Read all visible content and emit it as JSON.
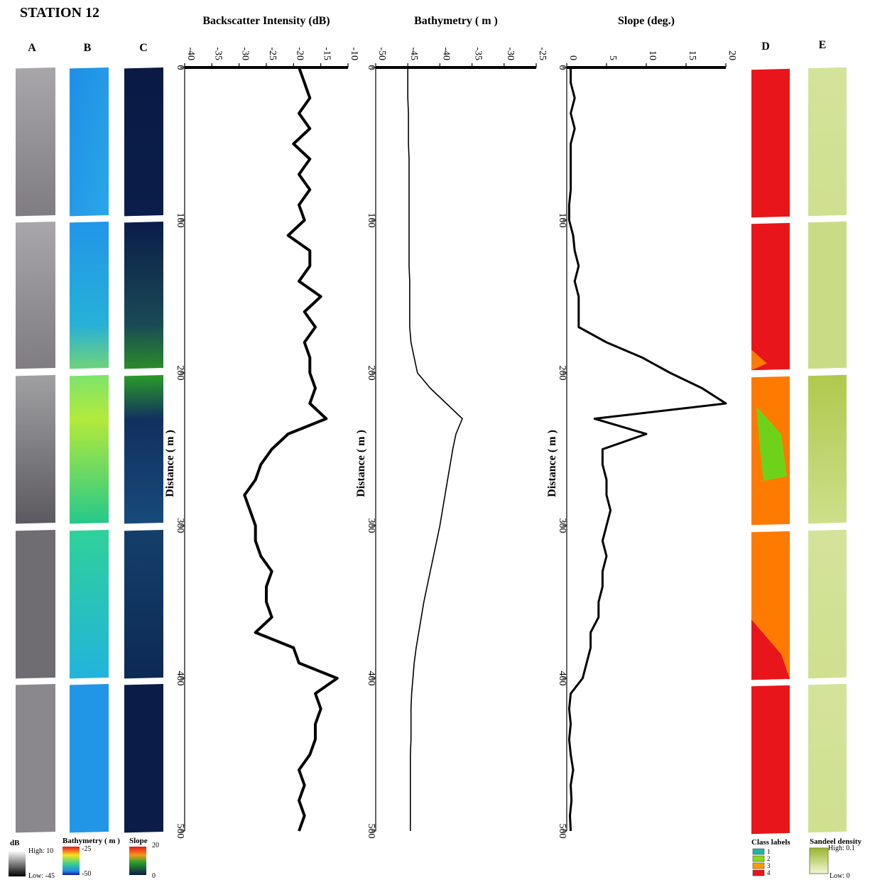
{
  "title": "STATION 12",
  "panel_labels": [
    "A",
    "B",
    "C",
    "D",
    "E"
  ],
  "legends": {
    "db": {
      "title": "dB",
      "high": "High: 10",
      "low": "Low: -45"
    },
    "bathymetry": {
      "title": "Bathymetry ( m )",
      "high": "-25",
      "low": "-50"
    },
    "slope": {
      "title": "Slope",
      "high": "20",
      "low": "0"
    },
    "classes": {
      "title": "Class labels",
      "labels": [
        "1",
        "2",
        "3",
        "4"
      ],
      "colors": [
        "#1fb5a8",
        "#8fd61a",
        "#ff9a00",
        "#e8151b"
      ]
    },
    "sandeel": {
      "title": "Sandeel density",
      "high": "High: 0.1",
      "low": "Low: 0"
    }
  },
  "chart_data": [
    {
      "type": "line",
      "title": "Backscatter Intensity (dB)",
      "x_label": "Distance ( m )",
      "color": "#000000",
      "x": [
        0,
        10,
        20,
        30,
        40,
        50,
        60,
        70,
        80,
        90,
        100,
        110,
        120,
        130,
        140,
        150,
        160,
        170,
        180,
        190,
        200,
        210,
        220,
        230,
        240,
        250,
        260,
        270,
        280,
        290,
        300,
        310,
        320,
        330,
        340,
        350,
        360,
        370,
        380,
        390,
        400,
        410,
        420,
        430,
        440,
        450,
        460,
        470,
        480,
        490,
        500
      ],
      "values": [
        -19,
        -18,
        -17,
        -19,
        -17,
        -20,
        -17,
        -19,
        -17,
        -19,
        -18,
        -21,
        -17,
        -17,
        -19,
        -15,
        -18,
        -16,
        -18,
        -17,
        -17,
        -16,
        -17,
        -14,
        -21,
        -24,
        -26,
        -27,
        -29,
        -28,
        -27,
        -27,
        -26,
        -24,
        -25,
        -25,
        -24,
        -27,
        -20,
        -19,
        -12,
        -16,
        -15,
        -16,
        -16,
        -17,
        -19,
        -18,
        -19,
        -18,
        -19
      ],
      "xlim": [
        0,
        500
      ],
      "xticks": [
        0,
        100,
        200,
        300,
        400,
        500
      ],
      "ylim": [
        -40,
        -10
      ],
      "yticks": [
        -40,
        -35,
        -30,
        -25,
        -20,
        -15,
        -10
      ]
    },
    {
      "type": "line",
      "title": "Bathymetry ( m )",
      "x_label": "Distance ( m )",
      "color": "#000000",
      "x": [
        0,
        10,
        20,
        30,
        40,
        50,
        60,
        70,
        80,
        90,
        100,
        110,
        120,
        130,
        140,
        150,
        160,
        170,
        180,
        190,
        200,
        210,
        220,
        230,
        240,
        250,
        260,
        270,
        280,
        290,
        300,
        310,
        320,
        330,
        340,
        350,
        360,
        370,
        380,
        390,
        400,
        410,
        420,
        430,
        440,
        450,
        460,
        470,
        480,
        490,
        500
      ],
      "values": [
        -45,
        -45,
        -45,
        -44.9,
        -44.9,
        -44.9,
        -44.8,
        -44.8,
        -44.8,
        -44.8,
        -44.8,
        -44.8,
        -44.8,
        -44.8,
        -44.7,
        -44.7,
        -44.7,
        -44.7,
        -44.5,
        -44,
        -43.5,
        -41.5,
        -39,
        -36.5,
        -37.5,
        -38,
        -38.4,
        -38.8,
        -39.2,
        -39.6,
        -40,
        -40.5,
        -41,
        -41.5,
        -42,
        -42.5,
        -42.9,
        -43.3,
        -43.7,
        -44,
        -44.2,
        -44.4,
        -44.5,
        -44.5,
        -44.5,
        -44.6,
        -44.6,
        -44.6,
        -44.6,
        -44.6,
        -44.6
      ],
      "xlim": [
        0,
        500
      ],
      "xticks": [
        0,
        100,
        200,
        300,
        400,
        500
      ],
      "ylim": [
        -50,
        -25
      ],
      "yticks": [
        -50,
        -45,
        -40,
        -35,
        -30,
        -25
      ]
    },
    {
      "type": "line",
      "title": "Slope (deg.)",
      "x_label": "Distance ( m )",
      "color": "#000000",
      "x": [
        0,
        10,
        20,
        30,
        40,
        50,
        60,
        70,
        80,
        90,
        100,
        110,
        120,
        130,
        140,
        150,
        160,
        170,
        180,
        190,
        200,
        210,
        220,
        230,
        240,
        250,
        260,
        270,
        280,
        290,
        300,
        310,
        320,
        330,
        340,
        350,
        360,
        370,
        380,
        390,
        400,
        410,
        420,
        430,
        440,
        450,
        460,
        470,
        480,
        490,
        500
      ],
      "values": [
        0.5,
        0.5,
        1,
        0.5,
        1,
        0.5,
        0.5,
        0.5,
        0.5,
        0.3,
        0.3,
        0.8,
        1,
        1.5,
        1,
        1.5,
        1.5,
        1.5,
        5,
        9.5,
        13,
        17,
        20,
        3.5,
        10,
        4.5,
        4.5,
        5,
        5,
        5.5,
        5,
        4.5,
        5,
        4.5,
        4.5,
        4,
        4,
        3,
        3,
        2.5,
        2,
        0.5,
        0.3,
        0.5,
        0.3,
        0.5,
        0.8,
        0.5,
        0.6,
        0.4,
        0.5
      ],
      "xlim": [
        0,
        500
      ],
      "xticks": [
        0,
        100,
        200,
        300,
        400,
        500
      ],
      "ylim": [
        0,
        20
      ],
      "yticks": [
        0,
        5,
        10,
        15,
        20
      ]
    }
  ]
}
